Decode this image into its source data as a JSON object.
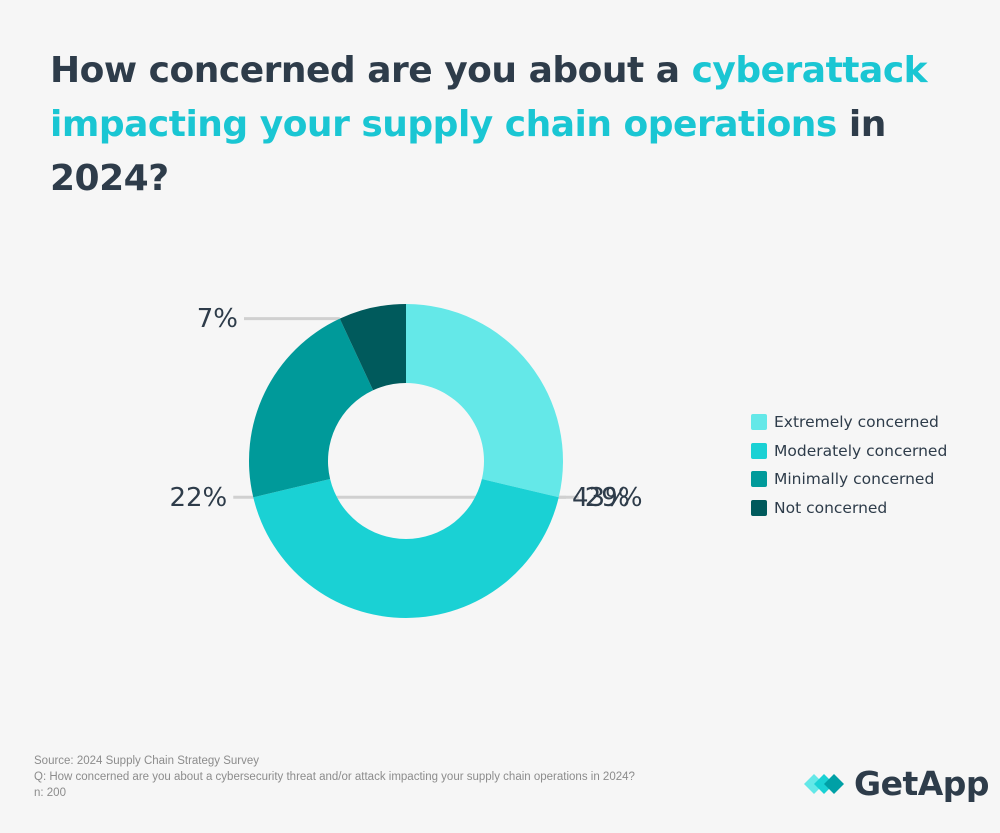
{
  "title": {
    "part1": "How concerned are you about a ",
    "highlight": "cyberattack impacting your supply chain operations",
    "part2": " in 2024?"
  },
  "chart_data": {
    "type": "pie",
    "donut": true,
    "categories": [
      "Extremely concerned",
      "Moderately concerned",
      "Minimally concerned",
      "Not concerned"
    ],
    "values": [
      29,
      43,
      22,
      7
    ],
    "labels": [
      "29%",
      "43%",
      "22%",
      "7%"
    ],
    "colors": [
      "#64e8e8",
      "#1ad1d4",
      "#009a9a",
      "#005a5c"
    ],
    "legend_position": "right"
  },
  "colors": {
    "background": "#f6f6f6",
    "title_text": "#2e3c4a",
    "title_highlight": "#1ac6d3",
    "leader_line": "#d0d0d0"
  },
  "footer": {
    "source": "Source: 2024 Supply Chain Strategy Survey",
    "question": "Q: How concerned are you about a cybersecurity threat and/or attack impacting your supply chain operations in 2024?",
    "n": "n: 200"
  },
  "brand": {
    "name": "GetApp",
    "icon": "getapp-logo-icon"
  }
}
